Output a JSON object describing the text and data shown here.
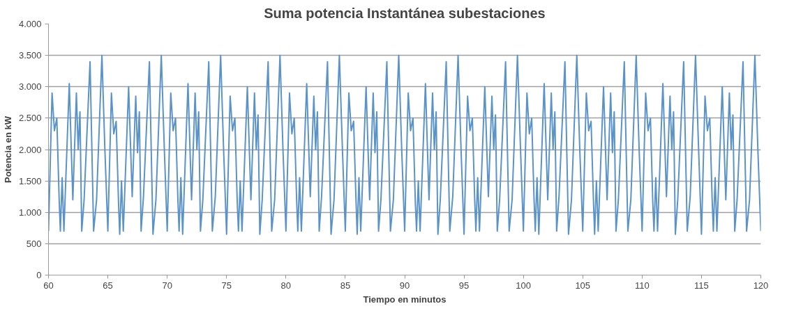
{
  "chart_data": {
    "type": "line",
    "title": "Suma potencia Instantánea subestaciones",
    "xlabel": "Tiempo en minutos",
    "ylabel": "Potencia en kW",
    "x": [
      60,
      60.3,
      60.5,
      60.7,
      60.9,
      61,
      61.15,
      61.3,
      61.75,
      62.05,
      62.35,
      62.5,
      62.65,
      62.8,
      63,
      63.5,
      63.8,
      64.05,
      64.5,
      64.75,
      65,
      65.3,
      65.5,
      65.7,
      65.9,
      66,
      66.15,
      66.3,
      66.75,
      67.05,
      67.35,
      67.5,
      67.65,
      67.8,
      68,
      68.5,
      68.8,
      69.05,
      69.5,
      69.75,
      70,
      70.3,
      70.5,
      70.7,
      70.9,
      71,
      71.15,
      71.3,
      71.75,
      72.05,
      72.35,
      72.5,
      72.65,
      72.8,
      73,
      73.5,
      73.8,
      74.05,
      74.5,
      74.75,
      75,
      75.3,
      75.5,
      75.7,
      75.9,
      76,
      76.15,
      76.3,
      76.75,
      77.05,
      77.35,
      77.5,
      77.65,
      77.8,
      78,
      78.5,
      78.8,
      79.05,
      79.5,
      79.75,
      80,
      80.3,
      80.5,
      80.7,
      80.9,
      81,
      81.15,
      81.3,
      81.75,
      82.05,
      82.35,
      82.5,
      82.65,
      82.8,
      83,
      83.5,
      83.8,
      84.05,
      84.5,
      84.75,
      85,
      85.3,
      85.5,
      85.7,
      85.9,
      86,
      86.15,
      86.3,
      86.75,
      87.05,
      87.35,
      87.5,
      87.65,
      87.8,
      88,
      88.5,
      88.8,
      89.05,
      89.5,
      89.75,
      90,
      90.3,
      90.5,
      90.7,
      90.9,
      91,
      91.15,
      91.3,
      91.75,
      92.05,
      92.35,
      92.5,
      92.65,
      92.8,
      93,
      93.5,
      93.8,
      94.05,
      94.5,
      94.75,
      95,
      95.3,
      95.5,
      95.7,
      95.9,
      96,
      96.15,
      96.3,
      96.75,
      97.05,
      97.35,
      97.5,
      97.65,
      97.8,
      98,
      98.5,
      98.8,
      99.05,
      99.5,
      99.75,
      100,
      100.3,
      100.5,
      100.7,
      100.9,
      101,
      101.15,
      101.3,
      101.75,
      102.05,
      102.35,
      102.5,
      102.65,
      102.8,
      103,
      103.5,
      103.8,
      104.05,
      104.5,
      104.75,
      105,
      105.3,
      105.5,
      105.7,
      105.9,
      106,
      106.15,
      106.3,
      106.75,
      107.05,
      107.35,
      107.5,
      107.65,
      107.8,
      108,
      108.5,
      108.8,
      109.05,
      109.5,
      109.75,
      110,
      110.3,
      110.5,
      110.7,
      110.9,
      111,
      111.15,
      111.3,
      111.75,
      112.05,
      112.35,
      112.5,
      112.65,
      112.8,
      113,
      113.5,
      113.8,
      114.05,
      114.5,
      114.75,
      115,
      115.3,
      115.5,
      115.7,
      115.9,
      116,
      116.15,
      116.3,
      116.75,
      117.05,
      117.35,
      117.5,
      117.65,
      117.8,
      118,
      118.5,
      118.8,
      119.05,
      119.5,
      119.75,
      120
    ],
    "series": [
      {
        "color": "#5b93c9",
        "values": [
          700,
          2900,
          2300,
          2500,
          1200,
          700,
          1550,
          700,
          3050,
          1200,
          2900,
          2000,
          2600,
          700,
          1200,
          3400,
          700,
          1200,
          3500,
          2000,
          700,
          2900,
          2250,
          2450,
          1150,
          650,
          1500,
          700,
          3000,
          1250,
          2850,
          1950,
          2600,
          700,
          1250,
          3400,
          650,
          1200,
          3500,
          2050,
          700,
          2900,
          2300,
          2500,
          1200,
          700,
          1550,
          650,
          3050,
          1200,
          2900,
          2000,
          2600,
          700,
          1200,
          3400,
          700,
          1250,
          3500,
          2000,
          650,
          2850,
          2300,
          2500,
          1150,
          700,
          1500,
          700,
          3000,
          1200,
          2900,
          2000,
          2550,
          650,
          1200,
          3400,
          700,
          1200,
          3500,
          2000,
          700,
          2900,
          2250,
          2500,
          1200,
          700,
          1550,
          700,
          3050,
          1250,
          2850,
          2000,
          2600,
          700,
          1250,
          3400,
          650,
          1200,
          3500,
          2050,
          700,
          2900,
          2300,
          2450,
          1200,
          650,
          1550,
          700,
          3000,
          1200,
          2900,
          1950,
          2600,
          700,
          1200,
          3400,
          700,
          1200,
          3500,
          2000,
          700,
          2900,
          2300,
          2500,
          1150,
          700,
          1500,
          700,
          3050,
          1200,
          2900,
          2000,
          2600,
          650,
          1200,
          3400,
          700,
          1250,
          3500,
          2000,
          650,
          2850,
          2300,
          2500,
          1200,
          700,
          1550,
          700,
          3000,
          1250,
          2850,
          2000,
          2550,
          700,
          1200,
          3400,
          700,
          1200,
          3500,
          2050,
          700,
          2900,
          2250,
          2500,
          1200,
          700,
          1550,
          650,
          3050,
          1200,
          2900,
          2000,
          2600,
          700,
          1250,
          3400,
          650,
          1200,
          3500,
          2000,
          700,
          2900,
          2300,
          2450,
          1200,
          650,
          1500,
          700,
          3000,
          1200,
          2900,
          1950,
          2600,
          700,
          1200,
          3400,
          700,
          1200,
          3500,
          2000,
          700,
          2900,
          2300,
          2500,
          1150,
          700,
          1550,
          700,
          3050,
          1250,
          2850,
          2000,
          2600,
          650,
          1200,
          3400,
          700,
          1250,
          3500,
          2050,
          650,
          2850,
          2300,
          2500,
          1200,
          700,
          1550,
          700,
          3000,
          1200,
          2900,
          2000,
          2550,
          700,
          1200,
          3400,
          700,
          1200,
          3500,
          2000,
          700
        ]
      }
    ],
    "xlim": [
      60,
      120
    ],
    "xticks": [
      60,
      65,
      70,
      75,
      80,
      85,
      90,
      95,
      100,
      105,
      110,
      115,
      120
    ],
    "ylim": [
      0,
      4000
    ],
    "yticks": [
      0,
      500,
      {
        "value": 1000,
        "label": "1.000"
      },
      {
        "value": 1500,
        "label": "1.500"
      },
      {
        "value": 2000,
        "label": "2.000"
      },
      {
        "value": 2500,
        "label": "2.500"
      },
      {
        "value": 3000,
        "label": "3.000"
      },
      {
        "value": 3500,
        "label": "3.500"
      },
      {
        "value": 4000,
        "label": "4.000"
      }
    ],
    "grid": "y",
    "marker": "none",
    "line_style": "solid"
  }
}
